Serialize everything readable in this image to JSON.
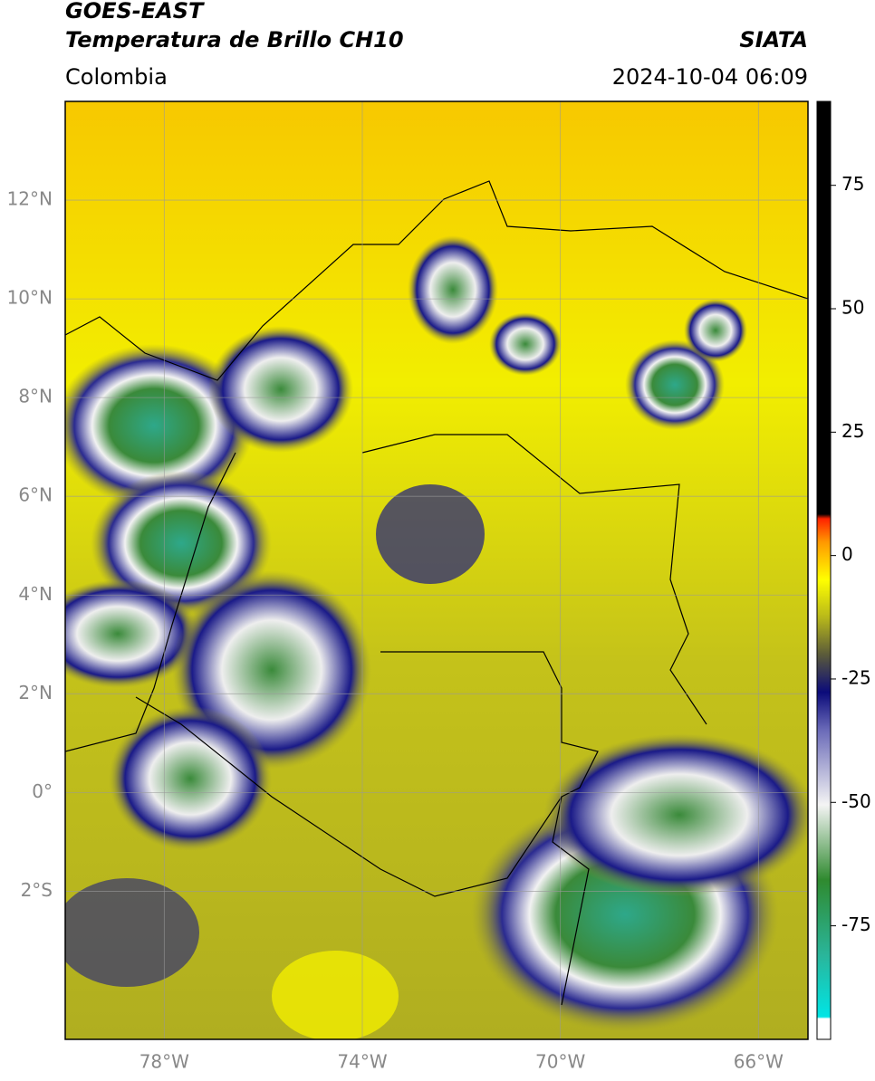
{
  "header": {
    "title": "GOES-EAST",
    "subtitle": "Temperatura de Brillo CH10",
    "source": "SIATA",
    "region": "Colombia",
    "datetime": "2024-10-04 06:09"
  },
  "map": {
    "xlim": [
      -80,
      -65
    ],
    "ylim": [
      -5,
      14
    ],
    "xticks": [
      {
        "value": -78,
        "label": "78°W"
      },
      {
        "value": -74,
        "label": "74°W"
      },
      {
        "value": -70,
        "label": "70°W"
      },
      {
        "value": -66,
        "label": "66°W"
      }
    ],
    "yticks": [
      {
        "value": 12,
        "label": "12°N"
      },
      {
        "value": 10,
        "label": "10°N"
      },
      {
        "value": 8,
        "label": "8°N"
      },
      {
        "value": 6,
        "label": "6°N"
      },
      {
        "value": 4,
        "label": "4°N"
      },
      {
        "value": 2,
        "label": "2°N"
      },
      {
        "value": 0,
        "label": "0°"
      },
      {
        "value": -2,
        "label": "2°S"
      }
    ],
    "grid": true
  },
  "colorbar": {
    "ylim": [
      -98,
      92
    ],
    "yticks": [
      75,
      50,
      25,
      0,
      -25,
      -50,
      -75
    ]
  }
}
